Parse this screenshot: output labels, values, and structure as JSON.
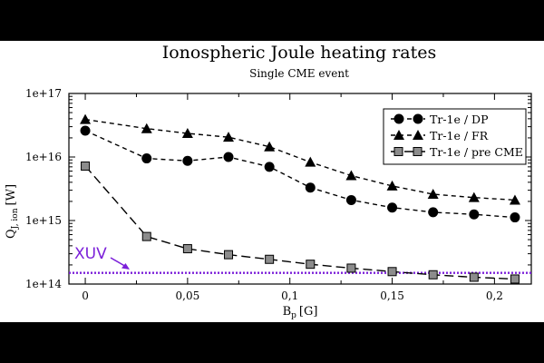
{
  "chart_data": {
    "type": "line",
    "title": "Ionospheric Joule heating rates",
    "subtitle": "Single CME event",
    "xlabel_main": "B",
    "xlabel_sub": "p",
    "xlabel_unit": "[G]",
    "ylabel_main": "Q",
    "ylabel_sub": "J, ion",
    "ylabel_unit": "[W]",
    "y_scale": "log",
    "xlim": [
      -0.008,
      0.218
    ],
    "ylim": [
      100000000000000.0,
      1e+17
    ],
    "x_ticks": [
      0,
      0.05,
      0.1,
      0.15,
      0.2
    ],
    "x_tick_labels": [
      "0",
      "0,05",
      "0,1",
      "0,15",
      "0,2"
    ],
    "y_ticks": [
      100000000000000.0,
      1000000000000000.0,
      1e+16,
      1e+17
    ],
    "y_tick_labels": [
      "1e+14",
      "1e+15",
      "1e+16",
      "1e+17"
    ],
    "legend_position": "top-right",
    "series": [
      {
        "name": "Tr-1e / DP",
        "marker": "circle",
        "color": "#000000",
        "dash": "5,4",
        "x": [
          0,
          0.03,
          0.05,
          0.07,
          0.09,
          0.11,
          0.13,
          0.15,
          0.17,
          0.19,
          0.21
        ],
        "y": [
          2.6e+16,
          9500000000000000.0,
          8700000000000000.0,
          1e+16,
          7000000000000000.0,
          3300000000000000.0,
          2100000000000000.0,
          1600000000000000.0,
          1350000000000000.0,
          1250000000000000.0,
          1120000000000000.0
        ]
      },
      {
        "name": "Tr-1e / FR",
        "marker": "triangle",
        "color": "#000000",
        "dash": "5,4",
        "x": [
          0,
          0.03,
          0.05,
          0.07,
          0.09,
          0.11,
          0.13,
          0.15,
          0.17,
          0.19,
          0.21
        ],
        "y": [
          3.9e+16,
          2.8e+16,
          2.35e+16,
          2.05e+16,
          1.45e+16,
          8300000000000000.0,
          5100000000000000.0,
          3500000000000000.0,
          2600000000000000.0,
          2300000000000000.0,
          2100000000000000.0
        ]
      },
      {
        "name": "Tr-1e / pre CME",
        "marker": "square",
        "color": "#000000",
        "fill": "#8c8c8c",
        "dash": "10,5",
        "x": [
          0,
          0.03,
          0.05,
          0.07,
          0.09,
          0.11,
          0.13,
          0.15,
          0.17,
          0.19,
          0.21
        ],
        "y": [
          7200000000000000.0,
          560000000000000.0,
          360000000000000.0,
          290000000000000.0,
          245000000000000.0,
          205000000000000.0,
          178000000000000.0,
          157000000000000.0,
          140000000000000.0,
          128000000000000.0,
          120000000000000.0
        ]
      }
    ],
    "reference_line": {
      "label": "XUV",
      "y": 150000000000000.0,
      "color": "#7b1fd9"
    }
  }
}
